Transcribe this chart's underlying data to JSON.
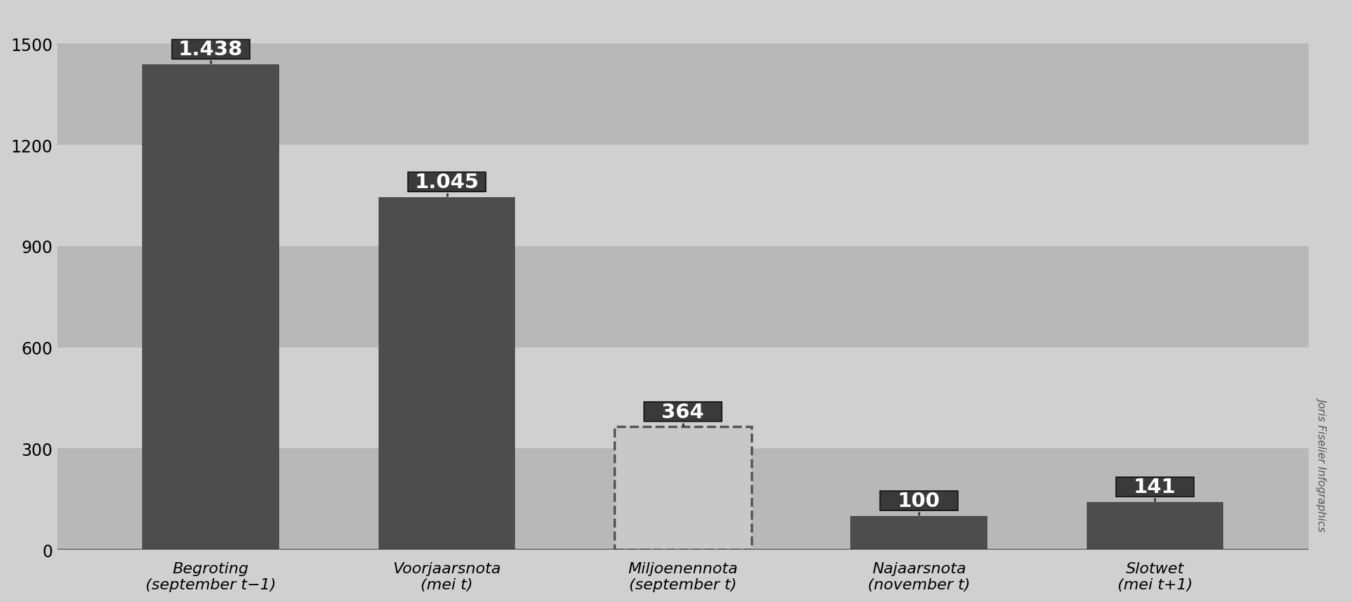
{
  "categories": [
    "Begroting\n(september t−1)",
    "Voorjaarsnota\n(mei t)",
    "Miljoenennota\n(september t)",
    "Najaarsnota\n(november t)",
    "Slotwet\n(mei t+1)"
  ],
  "values": [
    1438,
    1045,
    364,
    100,
    141
  ],
  "bar_colors": [
    "#4d4d4d",
    "#4d4d4d",
    "#c0c0c0",
    "#4d4d4d",
    "#4d4d4d"
  ],
  "bar_dashed": [
    false,
    false,
    true,
    false,
    false
  ],
  "labels": [
    "1.438",
    "1.045",
    "364",
    "100",
    "141"
  ],
  "ylim": [
    0,
    1600
  ],
  "yticks": [
    0,
    300,
    600,
    900,
    1200,
    1500
  ],
  "band_ranges": [
    [
      0,
      300
    ],
    [
      300,
      600
    ],
    [
      600,
      900
    ],
    [
      900,
      1200
    ],
    [
      1200,
      1500
    ],
    [
      1500,
      1600
    ]
  ],
  "band_colors": [
    "#b8b8b8",
    "#d0d0d0",
    "#b8b8b8",
    "#d0d0d0",
    "#b8b8b8",
    "#d0d0d0"
  ],
  "watermark": "Joris Fiselier Infographics",
  "label_box_color": "#3a3a3a",
  "label_text_color": "#ffffff",
  "fig_bg_color": "#d0d0d0",
  "plot_bg_color": "#d0d0d0"
}
